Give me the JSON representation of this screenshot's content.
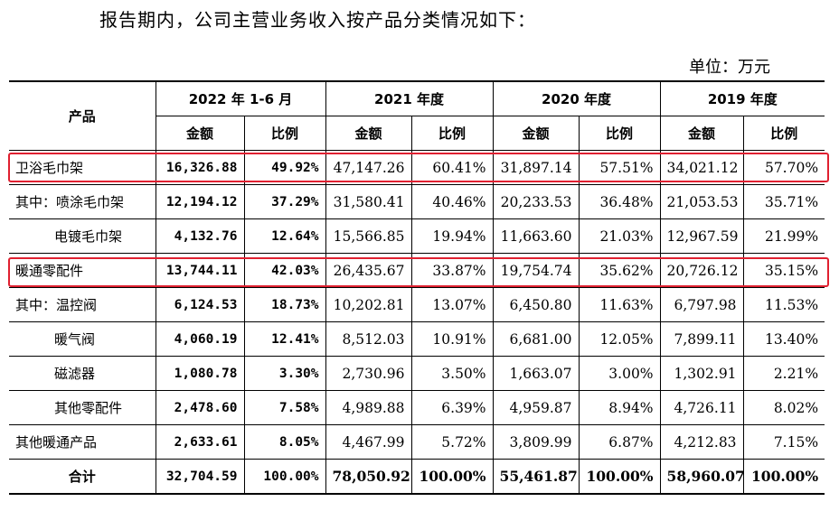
{
  "intro_text": "报告期内，公司主营业务收入按产品分类情况如下：",
  "unit_label": "单位：万元",
  "headers": {
    "product": "产品",
    "periods": [
      "2022 年 1-6 月",
      "2021 年度",
      "2020 年度",
      "2019 年度"
    ],
    "amount": "金额",
    "ratio": "比例"
  },
  "rows": [
    {
      "name": "卫浴毛巾架",
      "v": [
        "16,326.88",
        "49.92%",
        "47,147.26",
        "60.41%",
        "31,897.14",
        "57.51%",
        "34,021.12",
        "57.70%"
      ]
    },
    {
      "name": "其中：喷涂毛巾架",
      "v": [
        "12,194.12",
        "37.29%",
        "31,580.41",
        "40.46%",
        "20,233.53",
        "36.48%",
        "21,053.53",
        "35.71%"
      ]
    },
    {
      "name": "电镀毛巾架",
      "v": [
        "4,132.76",
        "12.64%",
        "15,566.85",
        "19.94%",
        "11,663.60",
        "21.03%",
        "12,967.59",
        "21.99%"
      ]
    },
    {
      "name": "暖通零配件",
      "v": [
        "13,744.11",
        "42.03%",
        "26,435.67",
        "33.87%",
        "19,754.74",
        "35.62%",
        "20,726.12",
        "35.15%"
      ]
    },
    {
      "name": "其中：温控阀",
      "v": [
        "6,124.53",
        "18.73%",
        "10,202.81",
        "13.07%",
        "6,450.80",
        "11.63%",
        "6,797.98",
        "11.53%"
      ]
    },
    {
      "name": "暖气阀",
      "v": [
        "4,060.19",
        "12.41%",
        "8,512.03",
        "10.91%",
        "6,681.00",
        "12.05%",
        "7,899.11",
        "13.40%"
      ]
    },
    {
      "name": "磁滤器",
      "v": [
        "1,080.78",
        "3.30%",
        "2,730.96",
        "3.50%",
        "1,663.07",
        "3.00%",
        "1,302.91",
        "2.21%"
      ]
    },
    {
      "name": "其他零配件",
      "v": [
        "2,478.60",
        "7.58%",
        "4,989.88",
        "6.39%",
        "4,959.87",
        "8.94%",
        "4,726.11",
        "8.02%"
      ]
    },
    {
      "name": "其他暖通产品",
      "v": [
        "2,633.61",
        "8.05%",
        "4,467.99",
        "5.72%",
        "3,809.99",
        "6.87%",
        "4,212.83",
        "7.15%"
      ]
    },
    {
      "name": "合计",
      "v": [
        "32,704.59",
        "100.00%",
        "78,050.92",
        "100.00%",
        "55,461.87",
        "100.00%",
        "58,960.07",
        "100.00%"
      ]
    }
  ],
  "highlight_color": "#e02030"
}
